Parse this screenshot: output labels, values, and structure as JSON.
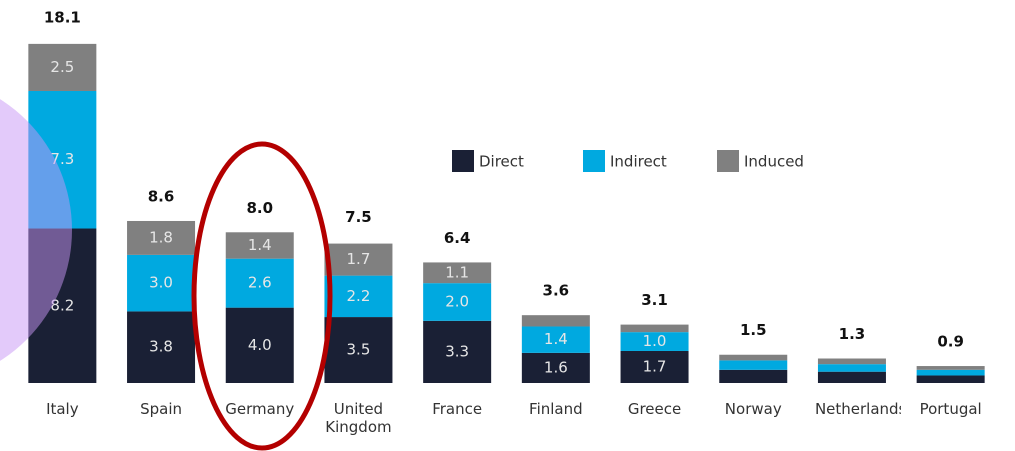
{
  "chart_data": {
    "type": "stacked_bar",
    "categories": [
      "Italy",
      "Spain",
      "Germany",
      "United Kingdom",
      "France",
      "Finland",
      "Greece",
      "Norway",
      "Netherlands",
      "Portugal"
    ],
    "series": [
      {
        "name": "Direct",
        "color": "#1a2035",
        "values": [
          8.2,
          3.8,
          4.0,
          3.5,
          3.3,
          1.6,
          1.7,
          0.7,
          0.6,
          0.4
        ],
        "value_labels": [
          "8.2",
          "3.8",
          "4.0",
          "3.5",
          "3.3",
          "1.6",
          "1.7",
          null,
          null,
          null
        ]
      },
      {
        "name": "Indirect",
        "color": "#00a9e0",
        "values": [
          7.3,
          3.0,
          2.6,
          2.2,
          2.0,
          1.4,
          1.0,
          0.5,
          0.4,
          0.3
        ],
        "value_labels": [
          "7.3",
          "3.0",
          "2.6",
          "2.2",
          "2.0",
          "1.4",
          "1.0",
          null,
          null,
          null
        ]
      },
      {
        "name": "Induced",
        "color": "#808080",
        "values": [
          2.5,
          1.8,
          1.4,
          1.7,
          1.1,
          0.6,
          0.4,
          0.3,
          0.3,
          0.2
        ],
        "value_labels": [
          "2.5",
          "1.8",
          "1.4",
          "1.7",
          "1.1",
          null,
          null,
          null,
          null,
          null
        ]
      }
    ],
    "totals": [
      18.1,
      8.6,
      8.0,
      7.5,
      6.4,
      3.6,
      3.1,
      1.5,
      1.3,
      0.9
    ],
    "total_labels": [
      "18.1",
      "8.6",
      "8.0",
      "7.5",
      "6.4",
      "3.6",
      "3.1",
      "1.5",
      "1.3",
      "0.9"
    ]
  }
}
